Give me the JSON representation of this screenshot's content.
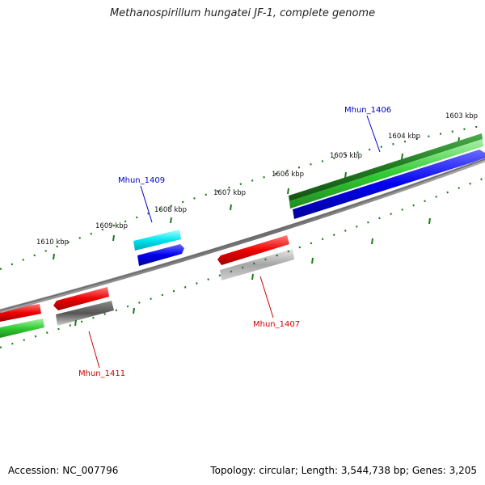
{
  "title": "Methanospirillum hungatei JF-1, complete genome",
  "footer": {
    "accession": "Accession: NC_007796",
    "summary": "Topology: circular; Length: 3,544,738 bp; Genes: 3,205"
  },
  "ticks": {
    "labels": [
      "1603 kbp",
      "1604 kbp",
      "1605 kbp",
      "1606 kbp",
      "1607 kbp",
      "1608 kbp",
      "1609 kbp",
      "1610 kbp"
    ],
    "color": "#1a7a1a"
  },
  "gene_labels": {
    "mhun_1406": "Mhun_1406",
    "mhun_1409": "Mhun_1409",
    "mhun_1407": "Mhun_1407",
    "mhun_1411": "Mhun_1411"
  },
  "colors": {
    "forward_label": "#0000cc",
    "reverse_label": "#cc0000",
    "backbone": "#808080",
    "blue": "#0000ee",
    "green": "#2e9e2e",
    "red": "#ee0000",
    "gray": "#999999",
    "cyan": "#00e5ee"
  }
}
